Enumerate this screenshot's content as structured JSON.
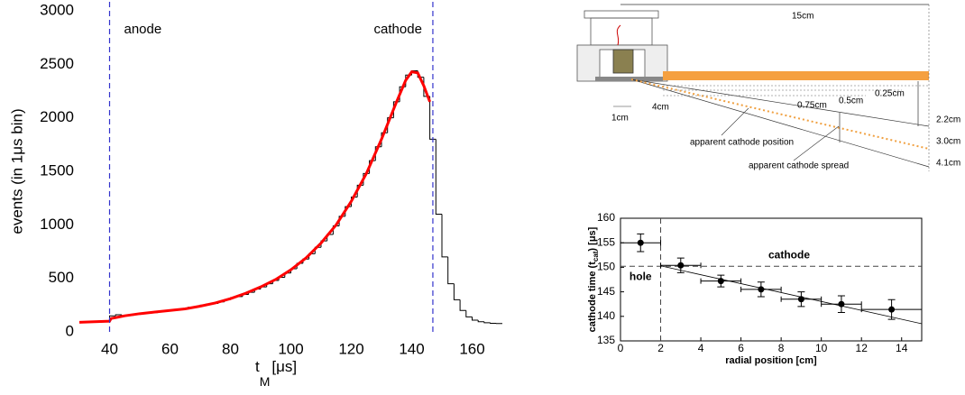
{
  "chart_data": [
    {
      "type": "histogram",
      "ylabel": "events (in 1μs bin)",
      "xlabel_parts": [
        "t",
        "M",
        "[μs]"
      ],
      "xlim": [
        30,
        170
      ],
      "xticks": [
        40,
        60,
        80,
        100,
        120,
        140,
        160
      ],
      "ylim": [
        0,
        3000
      ],
      "yticks": [
        0,
        500,
        1000,
        1500,
        2000,
        2500,
        3000
      ],
      "bins": [
        30,
        32,
        34,
        36,
        38,
        40,
        42,
        44,
        46,
        48,
        50,
        52,
        54,
        56,
        58,
        60,
        62,
        64,
        66,
        68,
        70,
        72,
        74,
        76,
        78,
        80,
        82,
        84,
        86,
        88,
        90,
        92,
        94,
        96,
        98,
        100,
        102,
        104,
        106,
        108,
        110,
        112,
        114,
        116,
        118,
        120,
        122,
        124,
        126,
        128,
        130,
        132,
        134,
        136,
        138,
        140,
        142,
        144,
        146,
        148,
        150,
        152,
        154,
        156,
        158,
        160,
        162,
        164,
        166,
        168,
        170
      ],
      "counts": [
        90,
        90,
        95,
        95,
        100,
        150,
        160,
        150,
        155,
        165,
        170,
        175,
        180,
        190,
        200,
        205,
        210,
        215,
        230,
        235,
        250,
        260,
        265,
        280,
        300,
        320,
        330,
        350,
        370,
        400,
        420,
        450,
        480,
        510,
        550,
        590,
        640,
        680,
        730,
        790,
        850,
        910,
        990,
        1080,
        1170,
        1260,
        1370,
        1480,
        1600,
        1730,
        1860,
        2000,
        2150,
        2290,
        2400,
        2440,
        2380,
        2200,
        1800,
        1100,
        700,
        450,
        300,
        200,
        140,
        110,
        95,
        85,
        80,
        78
      ],
      "color": "#000000",
      "fit": {
        "color": "#ff0000",
        "x": [
          30,
          35,
          40,
          40.5,
          45,
          50,
          55,
          60,
          65,
          70,
          75,
          80,
          85,
          90,
          95,
          100,
          105,
          110,
          115,
          120,
          125,
          130,
          135,
          138,
          140,
          142,
          144,
          146
        ],
        "values": [
          90,
          95,
          100,
          125,
          150,
          170,
          185,
          200,
          215,
          240,
          270,
          310,
          360,
          420,
          490,
          580,
          690,
          830,
          1000,
          1220,
          1480,
          1800,
          2150,
          2350,
          2430,
          2420,
          2300,
          2150
        ]
      },
      "vlines": {
        "color": "#3333cc",
        "lines": [
          {
            "x": 40,
            "label": "anode"
          },
          {
            "x": 147,
            "label": "cathode"
          }
        ]
      }
    },
    {
      "type": "scatter",
      "xlabel": "radial position [cm]",
      "ylabel_parts": [
        "cathode time (t",
        "cat",
        ") [μs]"
      ],
      "xlim": [
        0,
        15
      ],
      "xticks": [
        0,
        2,
        4,
        6,
        8,
        10,
        12,
        14
      ],
      "ylim": [
        135,
        160
      ],
      "yticks": [
        135,
        140,
        145,
        150,
        155,
        160
      ],
      "x": [
        1,
        3,
        5,
        7,
        9,
        11,
        13.5
      ],
      "xerr": [
        1,
        1,
        1,
        1,
        1,
        1,
        1.5
      ],
      "values": [
        155,
        150.4,
        147.2,
        145.5,
        143.5,
        142.5,
        141.4
      ],
      "yerr": [
        1.8,
        1.5,
        1.2,
        1.5,
        1.5,
        1.7,
        2
      ],
      "color": "#000000",
      "fit": {
        "x": [
          2,
          15
        ],
        "values": [
          150.3,
          138.5
        ]
      },
      "hline": {
        "y": 150.2,
        "label": "cathode"
      },
      "vline": {
        "x": 2,
        "label": "hole"
      }
    }
  ],
  "diagram": {
    "labels": [
      "15cm",
      "0.25cm",
      "0.5cm",
      "0.75cm",
      "1cm",
      "4cm",
      "2.2cm",
      "3.0cm",
      "4.1cm",
      "apparent cathode position",
      "apparent cathode spread"
    ]
  }
}
